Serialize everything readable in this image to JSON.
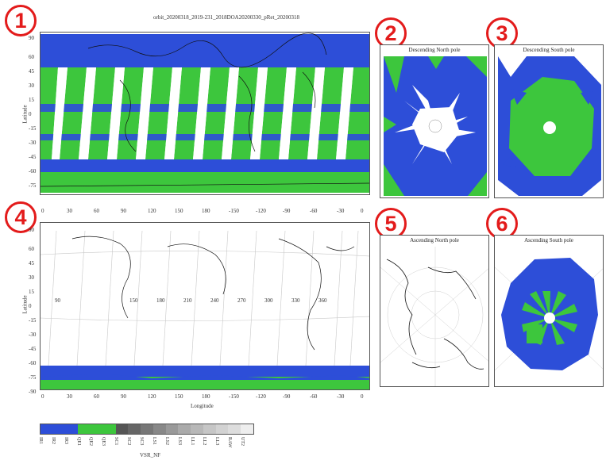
{
  "markers": [
    "1",
    "2",
    "3",
    "4",
    "5",
    "6"
  ],
  "main_title": "orbit_20200318_2019-231_2018DOA20200330_pRet_20200318",
  "top_map": {
    "ylabel": "Latitude",
    "y_ticks": [
      "90",
      "60",
      "45",
      "30",
      "15",
      "0",
      "-15",
      "-30",
      "-45",
      "-60",
      "-75",
      "-90"
    ]
  },
  "bottom_map": {
    "ylabel": "Latitude",
    "xlabel": "Longitude",
    "x_ticks": [
      "0",
      "30",
      "60",
      "90",
      "120",
      "150",
      "180",
      "-150",
      "-120",
      "-90",
      "-60",
      "-30",
      "0"
    ],
    "y_ticks": [
      "90",
      "60",
      "45",
      "30",
      "15",
      "0",
      "-15",
      "-30",
      "-45",
      "-60",
      "-75",
      "-90"
    ],
    "inline_labels": [
      "90",
      "150",
      "180",
      "210",
      "240",
      "270",
      "300",
      "330",
      "360"
    ]
  },
  "polar_titles": {
    "p2": "Descending North pole",
    "p3": "Descending South pole",
    "p5": "Ascending North pole",
    "p6": "Ascending South pole"
  },
  "colorbar": {
    "title": "VSR_NF",
    "labels": [
      "IR1",
      "IR2",
      "IR3",
      "QE1",
      "QE2",
      "QE3",
      "SC1",
      "SC2",
      "SC3",
      "LS1",
      "LS2",
      "LS3",
      "LL1",
      "LL2",
      "LL3",
      "RAW",
      "UT2"
    ],
    "colors": [
      "#2d4ed8",
      "#2d4ed8",
      "#2d4ed8",
      "#3dc63d",
      "#3dc63d",
      "#3dc63d",
      "#555555",
      "#666666",
      "#777777",
      "#888888",
      "#999999",
      "#aaaaaa",
      "#b8b8b8",
      "#c6c6c6",
      "#d2d2d2",
      "#dddddd",
      "#eeeeee"
    ]
  },
  "colors": {
    "blue": "#2d4ed8",
    "green": "#3dc63d",
    "accent_red": "#e31b1b"
  }
}
